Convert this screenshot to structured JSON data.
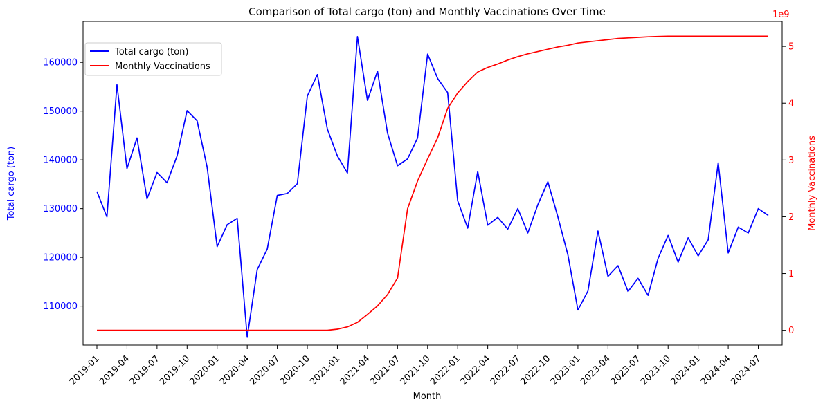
{
  "colors": {
    "left_series": "#0000ff",
    "right_series": "#ff0000",
    "axes": "#000000",
    "background": "#ffffff"
  },
  "chart_data": {
    "type": "line",
    "title": "Comparison of Total cargo (ton) and Monthly Vaccinations Over Time",
    "xlabel": "Month",
    "ylabel_left": "Total cargo (ton)",
    "ylabel_right": "Monthly Vaccinations",
    "right_axis_multiplier": "1e9",
    "grid": false,
    "legend_position": "upper-left",
    "x_tick_labels": [
      "2019-01",
      "2019-04",
      "2019-07",
      "2019-10",
      "2020-01",
      "2020-04",
      "2020-07",
      "2020-10",
      "2021-01",
      "2021-04",
      "2021-07",
      "2021-10",
      "2022-01",
      "2022-04",
      "2022-07",
      "2022-10",
      "2023-01",
      "2023-04",
      "2023-07",
      "2023-10",
      "2024-01",
      "2024-04",
      "2024-07"
    ],
    "x": [
      "2019-01",
      "2019-02",
      "2019-03",
      "2019-04",
      "2019-05",
      "2019-06",
      "2019-07",
      "2019-08",
      "2019-09",
      "2019-10",
      "2019-11",
      "2019-12",
      "2020-01",
      "2020-02",
      "2020-03",
      "2020-04",
      "2020-05",
      "2020-06",
      "2020-07",
      "2020-08",
      "2020-09",
      "2020-10",
      "2020-11",
      "2020-12",
      "2021-01",
      "2021-02",
      "2021-03",
      "2021-04",
      "2021-05",
      "2021-06",
      "2021-07",
      "2021-08",
      "2021-09",
      "2021-10",
      "2021-11",
      "2021-12",
      "2022-01",
      "2022-02",
      "2022-03",
      "2022-04",
      "2022-05",
      "2022-06",
      "2022-07",
      "2022-08",
      "2022-09",
      "2022-10",
      "2022-11",
      "2022-12",
      "2023-01",
      "2023-02",
      "2023-03",
      "2023-04",
      "2023-05",
      "2023-06",
      "2023-07",
      "2023-08",
      "2023-09",
      "2023-10",
      "2023-11",
      "2023-12",
      "2024-01",
      "2024-02",
      "2024-03",
      "2024-04",
      "2024-05",
      "2024-06",
      "2024-07",
      "2024-08"
    ],
    "left_axis": {
      "ylim": [
        102000,
        168400
      ],
      "ticks": [
        110000,
        120000,
        130000,
        140000,
        150000,
        160000
      ],
      "tick_labels": [
        "110000",
        "120000",
        "130000",
        "140000",
        "150000",
        "160000"
      ]
    },
    "right_axis": {
      "ylim": [
        -0.26,
        5.44
      ],
      "ticks": [
        0,
        1,
        2,
        3,
        4,
        5
      ],
      "tick_labels": [
        "0",
        "1",
        "2",
        "3",
        "4",
        "5"
      ]
    },
    "series": [
      {
        "name": "Total cargo (ton)",
        "axis": "left",
        "color": "#0000ff",
        "values": [
          133500,
          128300,
          155400,
          138200,
          144500,
          132000,
          137400,
          135300,
          140800,
          150100,
          148000,
          138500,
          122200,
          126700,
          128000,
          103600,
          117500,
          121700,
          132700,
          133100,
          135100,
          153100,
          157500,
          146300,
          140800,
          137300,
          165300,
          152200,
          158200,
          145500,
          138800,
          140200,
          144500,
          161700,
          156700,
          153800,
          131600,
          126000,
          137600,
          126600,
          128200,
          125800,
          130000,
          125000,
          130800,
          135500,
          128300,
          120500,
          109200,
          113100,
          125400,
          116100,
          118300,
          113000,
          115700,
          112200,
          119800,
          124500,
          119000,
          124000,
          120300,
          123600,
          139400,
          120900,
          126200,
          125000,
          130000,
          128600
        ]
      },
      {
        "name": "Monthly Vaccinations",
        "axis": "right",
        "color": "#ff0000",
        "values": [
          0,
          0,
          0,
          0,
          0,
          0,
          0,
          0,
          0,
          0,
          0,
          0,
          0,
          0,
          0,
          0,
          0,
          0,
          0,
          0,
          0,
          0,
          0,
          0,
          0.02,
          0.06,
          0.14,
          0.28,
          0.43,
          0.63,
          0.92,
          2.14,
          2.63,
          3.02,
          3.39,
          3.91,
          4.18,
          4.38,
          4.55,
          4.63,
          4.69,
          4.76,
          4.82,
          4.87,
          4.91,
          4.95,
          4.99,
          5.02,
          5.06,
          5.08,
          5.1,
          5.12,
          5.14,
          5.15,
          5.16,
          5.17,
          5.175,
          5.18,
          5.18,
          5.18,
          5.18,
          5.18,
          5.18,
          5.18,
          5.18,
          5.18,
          5.18,
          5.18
        ]
      }
    ]
  }
}
